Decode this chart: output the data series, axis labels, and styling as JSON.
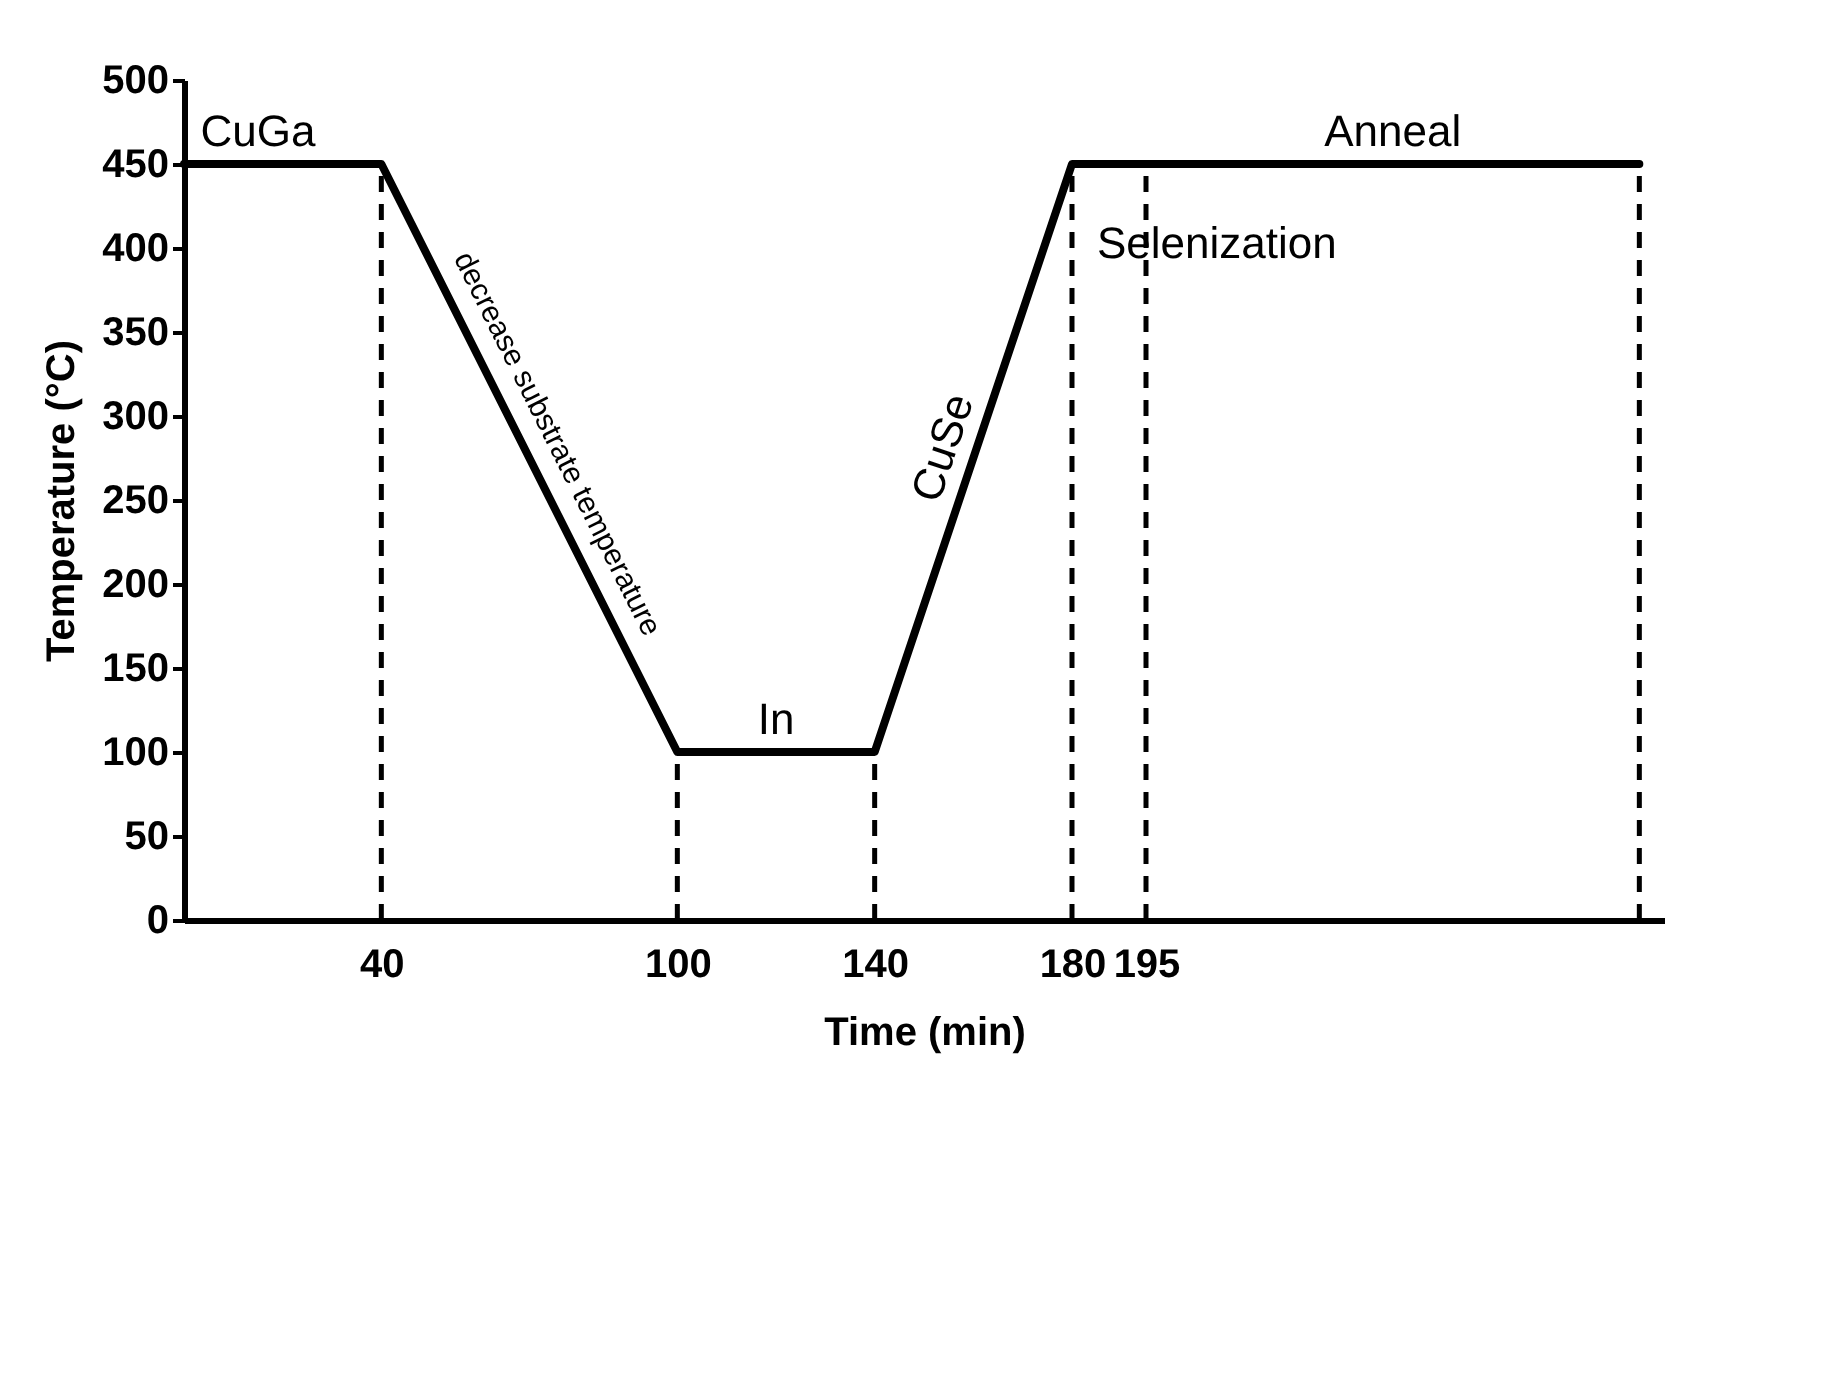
{
  "chart_data": {
    "type": "line",
    "xlabel": "Time (min)",
    "ylabel": "Temperature (°C)",
    "x": [
      0,
      40,
      100,
      140,
      180,
      295
    ],
    "series": [
      {
        "color": "#000000",
        "values": [
          450,
          450,
          100,
          100,
          450,
          450
        ]
      }
    ],
    "xlim": [
      0,
      300
    ],
    "xticks": [
      40,
      100,
      140,
      180,
      195
    ],
    "ylim": [
      0,
      500
    ],
    "yticks": [
      0,
      50,
      100,
      150,
      200,
      250,
      300,
      350,
      400,
      450,
      500
    ],
    "grid": false,
    "marker": "none",
    "line_style": "solid",
    "legend": false,
    "ref_lines": [
      {
        "axis": "x",
        "value": 40,
        "color": "#000000",
        "line_style": "dashed"
      },
      {
        "axis": "x",
        "value": 100,
        "color": "#000000",
        "line_style": "dashed"
      },
      {
        "axis": "x",
        "value": 140,
        "color": "#000000",
        "line_style": "dashed"
      },
      {
        "axis": "x",
        "value": 180,
        "color": "#000000",
        "line_style": "dashed"
      },
      {
        "axis": "x",
        "value": 195,
        "color": "#000000",
        "line_style": "dashed"
      },
      {
        "axis": "x",
        "value": 295,
        "color": "#000000",
        "line_style": "dashed"
      }
    ],
    "annotations": [
      {
        "text": "CuGa",
        "x": 15,
        "y": 450
      },
      {
        "text": "decrease substrate temperature",
        "x": 70,
        "y": 275
      },
      {
        "text": "In",
        "x": 120,
        "y": 100
      },
      {
        "text": "CuSe",
        "x": 160,
        "y": 275
      },
      {
        "text": "Selenization",
        "x": 187.5,
        "y": 450
      },
      {
        "text": "Anneal",
        "x": 245,
        "y": 450
      }
    ]
  }
}
